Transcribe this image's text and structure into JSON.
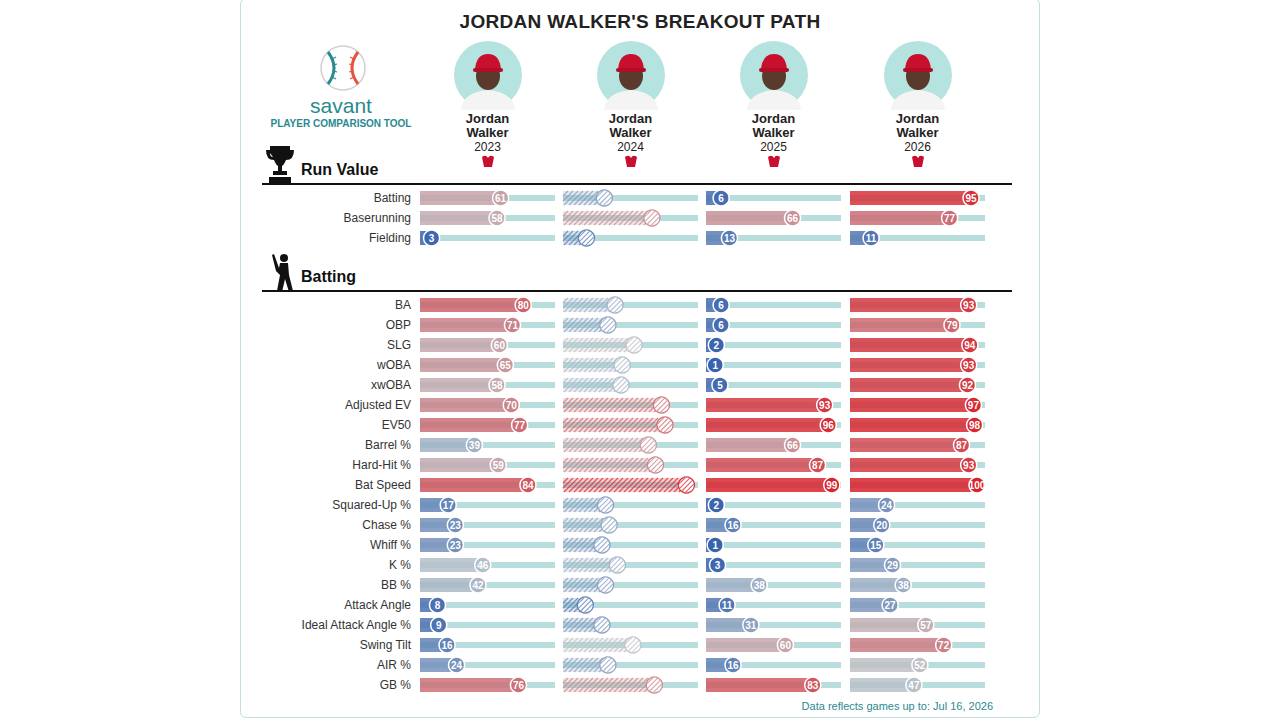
{
  "chart_data": {
    "type": "bar",
    "orientation": "horizontal",
    "title": "JORDAN WALKER'S BREAKOUT PATH",
    "logo": {
      "text": "savant",
      "subtitle": "PLAYER COMPARISON TOOL"
    },
    "footnote": "Data reflects games up to: Jul 16, 2026",
    "xlim": [
      0,
      100
    ],
    "tick_labels": "y",
    "grid": false,
    "data_labels": true,
    "panels": [
      {
        "title": "Run Value",
        "categories": [
          "Batting",
          "Baserunning",
          "Fielding"
        ]
      },
      {
        "title": "Batting",
        "categories": [
          "BA",
          "OBP",
          "SLG",
          "wOBA",
          "xwOBA",
          "Adjusted EV",
          "EV50",
          "Barrel %",
          "Hard-Hit %",
          "Bat Speed",
          "Squared-Up %",
          "Chase %",
          "Whiff %",
          "K %",
          "BB %",
          "Attack Angle",
          "Ideal Attack Angle %",
          "Swing Tilt",
          "AIR %",
          "GB %"
        ]
      }
    ],
    "series": [
      {
        "name": "Jordan Walker",
        "season": "2023",
        "values": [
          [
            61,
            58,
            3
          ],
          [
            80,
            71,
            60,
            65,
            58,
            70,
            77,
            39,
            59,
            84,
            17,
            23,
            23,
            46,
            42,
            8,
            9,
            16,
            24,
            76
          ]
        ]
      },
      {
        "name": "Jordan Walker",
        "season": "2024",
        "data_labels": false,
        "values": [
          [
            28,
            68,
            13
          ],
          [
            37,
            31,
            53,
            43,
            42,
            76,
            79,
            65,
            71,
            97,
            29,
            32,
            26,
            39,
            29,
            12,
            26,
            52,
            31,
            70
          ]
        ]
      },
      {
        "name": "Jordan Walker",
        "season": "2025",
        "values": [
          [
            6,
            66,
            13
          ],
          [
            6,
            6,
            2,
            1,
            5,
            93,
            96,
            66,
            87,
            99,
            2,
            16,
            1,
            3,
            38,
            11,
            31,
            60,
            16,
            83
          ]
        ]
      },
      {
        "name": "Jordan Walker",
        "season": "2026",
        "values": [
          [
            95,
            77,
            11
          ],
          [
            93,
            79,
            94,
            93,
            92,
            97,
            98,
            87,
            93,
            100,
            24,
            20,
            15,
            29,
            38,
            27,
            57,
            72,
            52,
            47
          ]
        ]
      }
    ]
  }
}
